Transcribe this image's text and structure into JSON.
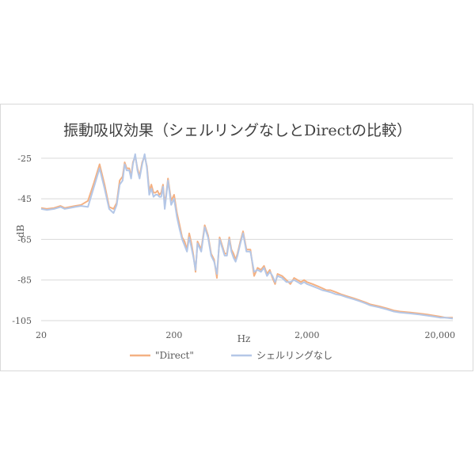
{
  "chart_data": {
    "type": "line",
    "title": "振動吸収効果（シェルリングなしとDirectの比較）",
    "xlabel": "Hz",
    "ylabel": "dB",
    "x_scale": "log",
    "xlim": [
      20,
      25000
    ],
    "ylim": [
      -105,
      -20
    ],
    "x_ticks": [
      20,
      200,
      2000,
      20000
    ],
    "x_tick_labels": [
      "20",
      "200",
      "2,000",
      "20,000"
    ],
    "y_ticks": [
      -25,
      -45,
      -65,
      -85,
      -105
    ],
    "y_tick_labels": [
      "-25",
      "-45",
      "-65",
      "-85",
      "-105"
    ],
    "grid": "horizontal",
    "legend": "bottom",
    "series": [
      {
        "name": "\"Direct\"",
        "color": "#f4b183",
        "x": [
          20,
          22,
          25,
          28,
          30,
          33,
          36,
          40,
          45,
          50,
          55,
          60,
          65,
          70,
          74,
          78,
          82,
          85,
          88,
          92,
          95,
          98,
          102,
          106,
          110,
          115,
          120,
          125,
          130,
          135,
          140,
          145,
          150,
          155,
          160,
          165,
          170,
          175,
          180,
          190,
          200,
          210,
          220,
          230,
          240,
          250,
          260,
          270,
          280,
          290,
          300,
          320,
          340,
          360,
          380,
          400,
          420,
          440,
          460,
          480,
          500,
          520,
          540,
          560,
          580,
          600,
          630,
          660,
          700,
          750,
          800,
          850,
          900,
          950,
          1000,
          1050,
          1100,
          1150,
          1200,
          1300,
          1400,
          1500,
          1600,
          1700,
          1800,
          1900,
          2000,
          2200,
          2400,
          2600,
          2800,
          3000,
          3300,
          3600,
          4000,
          4500,
          5000,
          5500,
          6000,
          7000,
          8000,
          9000,
          10000,
          12000,
          14000,
          16000,
          18000,
          20000,
          22000,
          25000
        ],
        "values": [
          -49.5,
          -50,
          -49.5,
          -48.5,
          -49.5,
          -49,
          -48.5,
          -48,
          -46,
          -37,
          -28,
          -38,
          -49,
          -50,
          -47,
          -36,
          -34,
          -27,
          -30,
          -30,
          -34,
          -27,
          -24,
          -30,
          -34,
          -27,
          -24,
          -29,
          -41,
          -38,
          -42,
          -42,
          -41,
          -43,
          -42,
          -38,
          -48,
          -42,
          -35,
          -46,
          -43,
          -52,
          -58,
          -64,
          -66,
          -70,
          -62,
          -67,
          -73,
          -81,
          -66,
          -70,
          -58,
          -63,
          -72,
          -75,
          -84,
          -64,
          -68,
          -72,
          -72,
          -64,
          -70,
          -72,
          -75,
          -72,
          -66,
          -61,
          -70,
          -70,
          -83,
          -79,
          -80,
          -78,
          -82,
          -80,
          -84,
          -87,
          -82,
          -83,
          -85,
          -87,
          -84,
          -85,
          -86,
          -85,
          -86,
          -87,
          -88,
          -89,
          -90,
          -90,
          -91,
          -92,
          -93,
          -94,
          -95,
          -96,
          -97,
          -98,
          -99,
          -100,
          -100.5,
          -101,
          -101.5,
          -102,
          -102.5,
          -103,
          -103.5,
          -103.5
        ]
      },
      {
        "name": "シェルリングなし",
        "color": "#b4c7e7",
        "x": [
          20,
          22,
          25,
          28,
          30,
          33,
          36,
          40,
          45,
          50,
          55,
          60,
          65,
          70,
          74,
          78,
          82,
          85,
          88,
          92,
          95,
          98,
          102,
          106,
          110,
          115,
          120,
          125,
          130,
          135,
          140,
          145,
          150,
          155,
          160,
          165,
          170,
          175,
          180,
          190,
          200,
          210,
          220,
          230,
          240,
          250,
          260,
          270,
          280,
          290,
          300,
          320,
          340,
          360,
          380,
          400,
          420,
          440,
          460,
          480,
          500,
          520,
          540,
          560,
          580,
          600,
          630,
          660,
          700,
          750,
          800,
          850,
          900,
          950,
          1000,
          1050,
          1100,
          1150,
          1200,
          1300,
          1400,
          1500,
          1600,
          1700,
          1800,
          1900,
          2000,
          2200,
          2400,
          2600,
          2800,
          3000,
          3300,
          3600,
          4000,
          4500,
          5000,
          5500,
          6000,
          7000,
          8000,
          9000,
          10000,
          12000,
          14000,
          16000,
          18000,
          20000,
          22000,
          25000
        ],
        "values": [
          -50,
          -50.5,
          -50,
          -49,
          -50,
          -49.5,
          -49,
          -48.5,
          -49,
          -39,
          -30,
          -40,
          -50,
          -52,
          -48,
          -38,
          -36,
          -28,
          -31,
          -31,
          -35,
          -28,
          -23,
          -31,
          -35,
          -28,
          -23,
          -30,
          -43,
          -40,
          -44,
          -43,
          -43,
          -44,
          -44,
          -39,
          -50,
          -43,
          -36,
          -48,
          -45,
          -54,
          -60,
          -65,
          -68,
          -71,
          -64,
          -69,
          -74,
          -80,
          -67,
          -71,
          -59,
          -64,
          -73,
          -76,
          -82,
          -65,
          -69,
          -73,
          -73,
          -65,
          -71,
          -74,
          -76,
          -73,
          -67,
          -62,
          -71,
          -71,
          -81,
          -80,
          -81,
          -79,
          -83,
          -81,
          -83,
          -86,
          -83,
          -84,
          -86,
          -86,
          -85,
          -86,
          -87,
          -86,
          -87,
          -88,
          -89,
          -90,
          -90.5,
          -91,
          -92,
          -92.5,
          -93.5,
          -94.5,
          -95.5,
          -96.5,
          -97.5,
          -98.5,
          -99.5,
          -100.5,
          -101,
          -101.5,
          -102,
          -102.5,
          -103,
          -103.5,
          -103.5,
          -104
        ]
      }
    ]
  }
}
